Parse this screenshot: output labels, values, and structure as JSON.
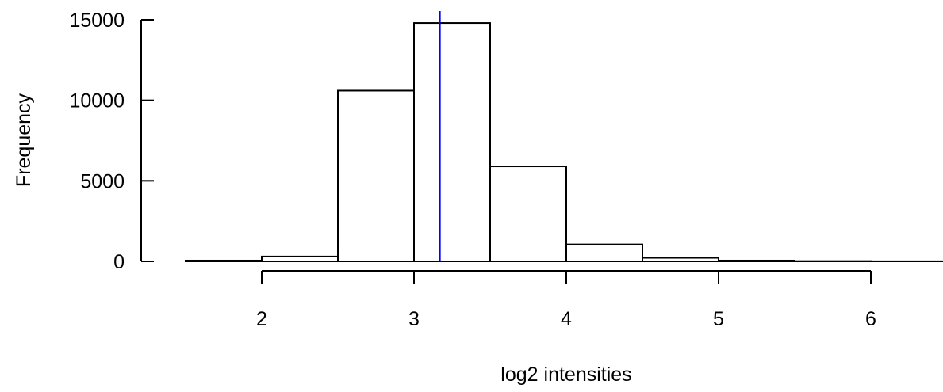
{
  "chart_data": {
    "type": "bar",
    "title": "",
    "xlabel": "log2 intensities",
    "ylabel": "Frequency",
    "bins": [
      {
        "start": 1.5,
        "end": 2.0,
        "count": 50
      },
      {
        "start": 2.0,
        "end": 2.5,
        "count": 300
      },
      {
        "start": 2.5,
        "end": 3.0,
        "count": 10600
      },
      {
        "start": 3.0,
        "end": 3.5,
        "count": 14800
      },
      {
        "start": 3.5,
        "end": 4.0,
        "count": 5900
      },
      {
        "start": 4.0,
        "end": 4.5,
        "count": 1050
      },
      {
        "start": 4.5,
        "end": 5.0,
        "count": 220
      },
      {
        "start": 5.0,
        "end": 5.5,
        "count": 50
      },
      {
        "start": 5.5,
        "end": 6.0,
        "count": 15
      },
      {
        "start": 6.0,
        "end": 6.5,
        "count": 5
      }
    ],
    "xlim": [
      1.5,
      6.5
    ],
    "ylim": [
      0,
      15000
    ],
    "x_ticks": [
      "2",
      "3",
      "4",
      "5",
      "6"
    ],
    "y_ticks": [
      "0",
      "5000",
      "10000",
      "15000"
    ],
    "reference_line": {
      "x": 3.17,
      "color": "#0000ff"
    },
    "grid": false,
    "legend": "none"
  }
}
